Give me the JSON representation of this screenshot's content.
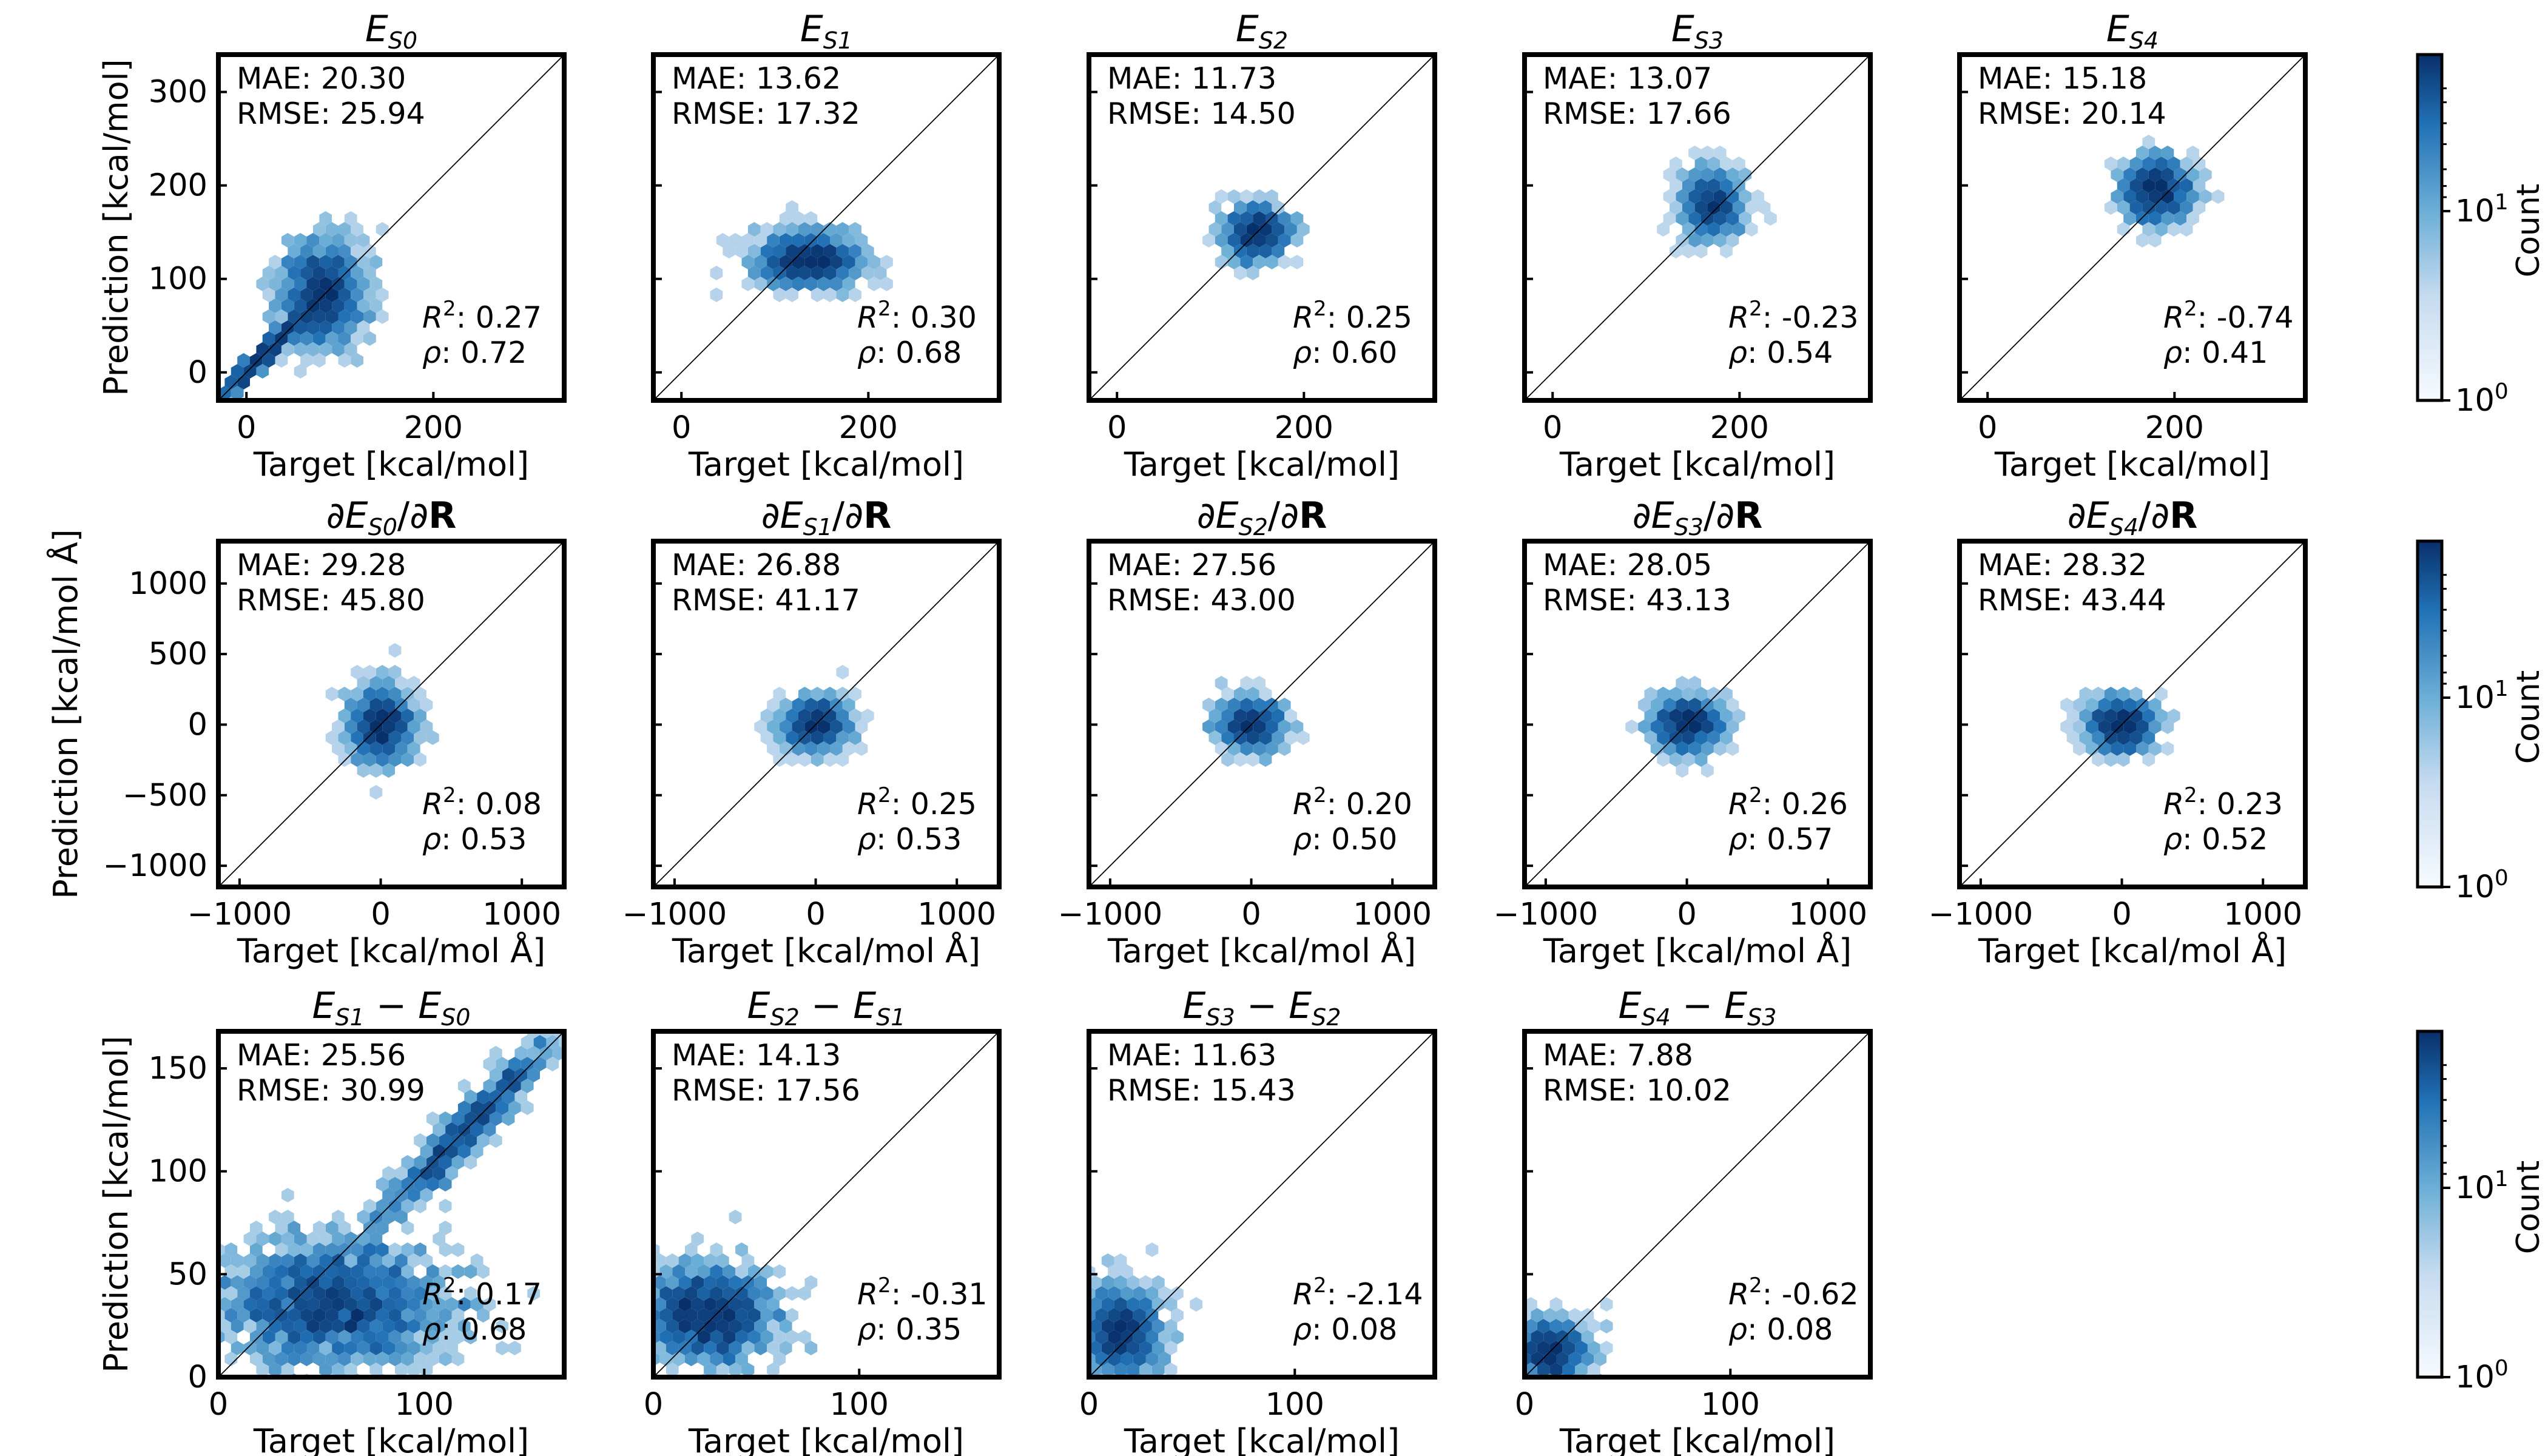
{
  "chart_data": {
    "type": "hexbin",
    "colormap": "Blues",
    "colorbar": {
      "label": "Count",
      "scale": "log",
      "ticks": [
        "10^0",
        "10^1"
      ]
    },
    "rows": [
      {
        "xlabel": "Target [kcal/mol]",
        "ylabel": "Prediction [kcal/mol]",
        "xlim": [
          -30,
          340
        ],
        "ylim": [
          -30,
          340
        ],
        "xticks": [
          0,
          200
        ],
        "xtick_labels": [
          "0",
          "200"
        ],
        "yticks": [
          0,
          100,
          200,
          300
        ],
        "ytick_labels": [
          "0",
          "100",
          "200",
          "300"
        ]
      },
      {
        "xlabel": "Target [kcal/mol Å]",
        "ylabel": "Prediction [kcal/mol Å]",
        "xlim": [
          -1150,
          1300
        ],
        "ylim": [
          -1150,
          1300
        ],
        "xticks": [
          -1000,
          0,
          1000
        ],
        "xtick_labels": [
          "−1000",
          "0",
          "1000"
        ],
        "yticks": [
          -1000,
          -500,
          0,
          500,
          1000
        ],
        "ytick_labels": [
          "−1000",
          "−500",
          "0",
          "500",
          "1000"
        ]
      },
      {
        "xlabel": "Target [kcal/mol]",
        "ylabel": "Prediction [kcal/mol]",
        "xlim": [
          0,
          168
        ],
        "ylim": [
          0,
          168
        ],
        "xticks": [
          0,
          100
        ],
        "xtick_labels": [
          "0",
          "100"
        ],
        "yticks": [
          0,
          50,
          100,
          150
        ],
        "ytick_labels": [
          "0",
          "50",
          "100",
          "150"
        ]
      }
    ],
    "panels": [
      {
        "row": 0,
        "col": 0,
        "title": "E_S0",
        "mae": "MAE: 20.30",
        "rmse": "RMSE: 25.94",
        "r2": "0.27",
        "rho": "0.72",
        "clusters": [
          {
            "cx": 80,
            "cy": 85,
            "sx": 22,
            "sy": 28,
            "n": 260
          },
          {
            "cx": 20,
            "cy": 15,
            "sx": 18,
            "sy": 14,
            "n": 120,
            "diag": true
          }
        ]
      },
      {
        "row": 0,
        "col": 1,
        "title": "E_S1",
        "mae": "MAE: 13.62",
        "rmse": "RMSE: 17.32",
        "r2": "0.30",
        "rho": "0.68",
        "clusters": [
          {
            "cx": 135,
            "cy": 120,
            "sx": 28,
            "sy": 14,
            "n": 260
          }
        ]
      },
      {
        "row": 0,
        "col": 2,
        "title": "E_S2",
        "mae": "MAE: 11.73",
        "rmse": "RMSE: 14.50",
        "r2": "0.25",
        "rho": "0.60",
        "clusters": [
          {
            "cx": 150,
            "cy": 150,
            "sx": 16,
            "sy": 14,
            "n": 240
          }
        ]
      },
      {
        "row": 0,
        "col": 3,
        "title": "E_S3",
        "mae": "MAE: 13.07",
        "rmse": "RMSE: 17.66",
        "r2": "-0.23",
        "rho": "0.54",
        "clusters": [
          {
            "cx": 170,
            "cy": 180,
            "sx": 16,
            "sy": 18,
            "n": 240
          }
        ]
      },
      {
        "row": 0,
        "col": 4,
        "title": "E_S4",
        "mae": "MAE: 15.18",
        "rmse": "RMSE: 20.14",
        "r2": "-0.74",
        "rho": "0.41",
        "clusters": [
          {
            "cx": 180,
            "cy": 195,
            "sx": 17,
            "sy": 17,
            "n": 240
          }
        ]
      },
      {
        "row": 1,
        "col": 0,
        "title": "∂E_S0/∂R",
        "mae": "MAE: 29.28",
        "rmse": "RMSE: 45.80",
        "r2": "0.08",
        "rho": "0.53",
        "clusters": [
          {
            "cx": 0,
            "cy": 0,
            "sx": 110,
            "sy": 130,
            "n": 220
          }
        ]
      },
      {
        "row": 1,
        "col": 1,
        "title": "∂E_S1/∂R",
        "mae": "MAE: 26.88",
        "rmse": "RMSE: 41.17",
        "r2": "0.25",
        "rho": "0.53",
        "clusters": [
          {
            "cx": 0,
            "cy": 0,
            "sx": 110,
            "sy": 90,
            "n": 220
          }
        ]
      },
      {
        "row": 1,
        "col": 2,
        "title": "∂E_S2/∂R",
        "mae": "MAE: 27.56",
        "rmse": "RMSE: 43.00",
        "r2": "0.20",
        "rho": "0.50",
        "clusters": [
          {
            "cx": 0,
            "cy": 0,
            "sx": 110,
            "sy": 90,
            "n": 220
          }
        ]
      },
      {
        "row": 1,
        "col": 3,
        "title": "∂E_S3/∂R",
        "mae": "MAE: 28.05",
        "rmse": "RMSE: 43.13",
        "r2": "0.26",
        "rho": "0.57",
        "clusters": [
          {
            "cx": 0,
            "cy": 0,
            "sx": 120,
            "sy": 95,
            "n": 220
          }
        ]
      },
      {
        "row": 1,
        "col": 4,
        "title": "∂E_S4/∂R",
        "mae": "MAE: 28.32",
        "rmse": "RMSE: 43.44",
        "r2": "0.23",
        "rho": "0.52",
        "clusters": [
          {
            "cx": 0,
            "cy": 0,
            "sx": 115,
            "sy": 90,
            "n": 220
          }
        ]
      },
      {
        "row": 2,
        "col": 0,
        "title": "E_S1 − E_S0",
        "mae": "MAE: 25.56",
        "rmse": "RMSE: 30.99",
        "r2": "0.17",
        "rho": "0.68",
        "clusters": [
          {
            "cx": 55,
            "cy": 35,
            "sx": 28,
            "sy": 16,
            "n": 380
          },
          {
            "cx": 120,
            "cy": 105,
            "sx": 14,
            "sy": 14,
            "n": 140,
            "diag": true
          }
        ]
      },
      {
        "row": 2,
        "col": 1,
        "title": "E_S2 − E_S1",
        "mae": "MAE: 14.13",
        "rmse": "RMSE: 17.56",
        "r2": "-0.31",
        "rho": "0.35",
        "clusters": [
          {
            "cx": 28,
            "cy": 30,
            "sx": 16,
            "sy": 12,
            "n": 260
          }
        ]
      },
      {
        "row": 2,
        "col": 2,
        "title": "E_S3 − E_S2",
        "mae": "MAE: 11.63",
        "rmse": "RMSE: 15.43",
        "r2": "-2.14",
        "rho": "0.08",
        "clusters": [
          {
            "cx": 15,
            "cy": 22,
            "sx": 10,
            "sy": 11,
            "n": 240
          }
        ]
      },
      {
        "row": 2,
        "col": 3,
        "title": "E_S4 − E_S3",
        "mae": "MAE: 7.88",
        "rmse": "RMSE: 10.02",
        "r2": "-0.62",
        "rho": "0.08",
        "clusters": [
          {
            "cx": 12,
            "cy": 12,
            "sx": 9,
            "sy": 8,
            "n": 200
          }
        ]
      }
    ]
  }
}
